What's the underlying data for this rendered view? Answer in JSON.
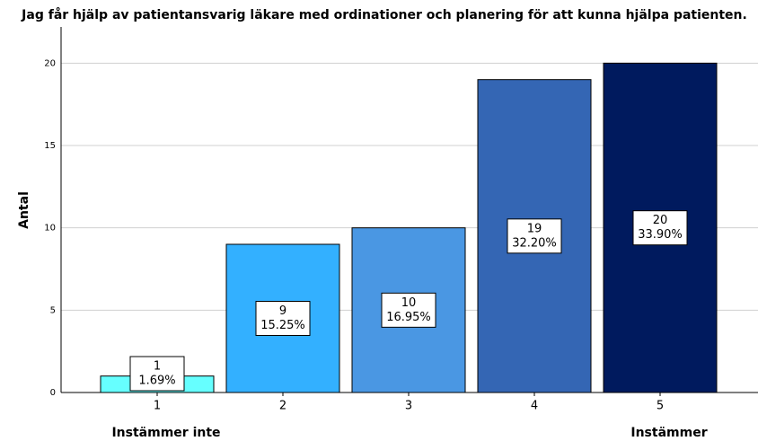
{
  "chart_data": {
    "type": "bar",
    "title": "Jag får hjälp av patientansvarig läkare med ordinationer och planering för att kunna hjälpa patienten.",
    "y_label": "Antal",
    "categories": [
      "1",
      "2",
      "3",
      "4",
      "5"
    ],
    "values": [
      1,
      9,
      10,
      19,
      20
    ],
    "percentages": [
      1.69,
      15.25,
      16.95,
      32.2,
      33.9
    ],
    "percentage_labels": [
      "1.69%",
      "15.25%",
      "16.95%",
      "32.20%",
      "33.90%"
    ],
    "colors": [
      "#66ffff",
      "#33b0ff",
      "#4a97e3",
      "#3466b4",
      "#001a5e"
    ],
    "annotations": [
      "Instämmer inte",
      "Instämmer"
    ],
    "ylim": [
      0,
      22.2
    ],
    "yticks": [
      0,
      5,
      10,
      15,
      20
    ],
    "grid": true
  }
}
